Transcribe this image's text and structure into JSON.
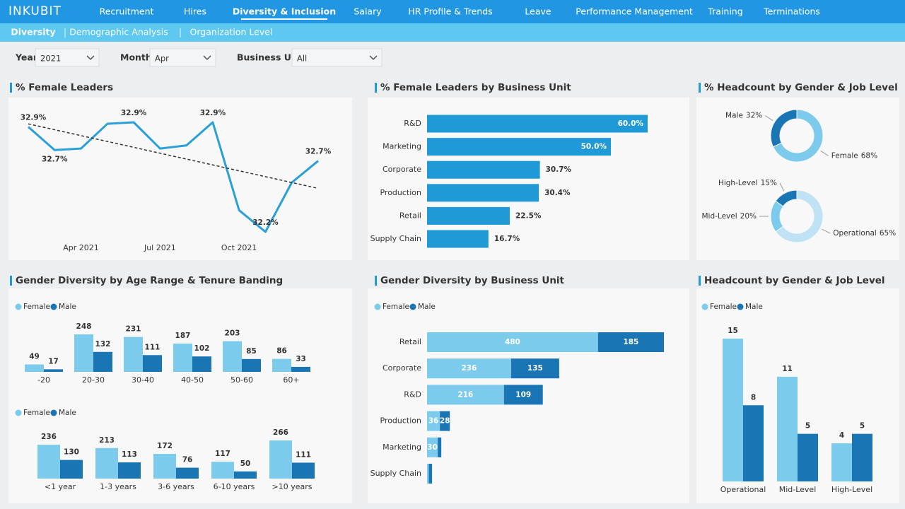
{
  "header": {
    "logo": "INKUBIT",
    "tabs": [
      "Recruitment",
      "Hires",
      "Diversity & Inclusion",
      "Salary",
      "HR Profile & Trends",
      "Leave",
      "Performance Management",
      "Training",
      "Terminations"
    ],
    "active_tab": 2,
    "subtabs": [
      "Diversity",
      "Demographic Analysis",
      "Organization Level"
    ],
    "active_subtab": 0
  },
  "filters": [
    {
      "label": "Year",
      "value": "2021"
    },
    {
      "label": "Month",
      "value": "Apr"
    },
    {
      "label": "Business Unit",
      "value": "All"
    }
  ],
  "chart_data": [
    {
      "type": "line",
      "title": "% Female Leaders",
      "categories": [
        null,
        null,
        "Apr 2021",
        null,
        null,
        "Jul 2021",
        null,
        null,
        "Oct 2021",
        null,
        null,
        null
      ],
      "values": [
        32.88,
        32.73,
        32.74,
        32.9,
        32.91,
        32.74,
        32.76,
        32.91,
        32.34,
        32.2,
        32.52,
        32.66
      ],
      "value_labels": [
        "32.9%",
        "32.7%",
        null,
        null,
        "32.9%",
        null,
        null,
        "32.9%",
        null,
        "32.2%",
        null,
        "32.7%"
      ],
      "color": "#2a9fd8",
      "trendline": true
    },
    {
      "type": "bar",
      "orientation": "horizontal",
      "title": "% Female Leaders by Business Unit",
      "categories": [
        "R&D",
        "Marketing",
        "Corporate",
        "Production",
        "Retail",
        "Supply Chain"
      ],
      "values": [
        60,
        50,
        30.7,
        30.4,
        22.5,
        16.7
      ],
      "value_labels": [
        "60.0%",
        "50.0%",
        "30.7%",
        "30.4%",
        "22.5%",
        "16.7%"
      ],
      "color": "#1f9ad6"
    },
    {
      "type": "pie",
      "title": "% Headcount by Gender & Job Level",
      "pies": [
        {
          "categories": [
            "Male",
            "Female"
          ],
          "values": [
            32,
            68
          ],
          "value_labels": [
            "32%",
            "68%"
          ],
          "colors": [
            "#1a75b5",
            "#7ccbec"
          ]
        },
        {
          "categories": [
            "High-Level",
            "Mid-Level",
            "Operational"
          ],
          "values": [
            15,
            20,
            65
          ],
          "value_labels": [
            "15%",
            "20%",
            "65%"
          ],
          "colors": [
            "#1a75b5",
            "#7ccbec",
            "#bfe3f5"
          ]
        }
      ]
    },
    {
      "type": "bar",
      "orientation": "vertical",
      "title": "Gender Diversity by Age Range & Tenure Banding",
      "groups": [
        {
          "categories": [
            "-20",
            "20-30",
            "30-40",
            "40-50",
            "50-60",
            "60+"
          ],
          "series": [
            {
              "name": "Female",
              "color": "#7ccbec",
              "values": [
                49,
                248,
                231,
                187,
                203,
                86
              ]
            },
            {
              "name": "Male",
              "color": "#1a75b5",
              "values": [
                17,
                132,
                111,
                102,
                85,
                33
              ]
            }
          ]
        },
        {
          "categories": [
            "<1 year",
            "1-3 years",
            "3-6 years",
            "6-10 years",
            ">10 years"
          ],
          "series": [
            {
              "name": "Female",
              "color": "#7ccbec",
              "values": [
                236,
                213,
                172,
                117,
                266
              ]
            },
            {
              "name": "Male",
              "color": "#1a75b5",
              "values": [
                130,
                113,
                76,
                50,
                111
              ]
            }
          ]
        }
      ]
    },
    {
      "type": "bar",
      "orientation": "horizontal",
      "stacked": true,
      "title": "Gender Diversity by Business Unit",
      "categories": [
        "Retail",
        "Corporate",
        "R&D",
        "Production",
        "Marketing",
        "Supply Chain"
      ],
      "series": [
        {
          "name": "Female",
          "color": "#7ccbec",
          "values": [
            480,
            236,
            216,
            36,
            30,
            5
          ]
        },
        {
          "name": "Male",
          "color": "#1a75b5",
          "values": [
            185,
            135,
            109,
            28,
            10,
            9
          ]
        }
      ]
    },
    {
      "type": "bar",
      "orientation": "vertical",
      "title": "Headcount by Gender & Job Level",
      "categories": [
        "Operational",
        "Mid-Level",
        "High-Level"
      ],
      "series": [
        {
          "name": "Female",
          "color": "#7ccbec",
          "values": [
            15,
            11,
            4
          ]
        },
        {
          "name": "Male",
          "color": "#1a75b5",
          "values": [
            8,
            5,
            5
          ]
        }
      ]
    }
  ]
}
